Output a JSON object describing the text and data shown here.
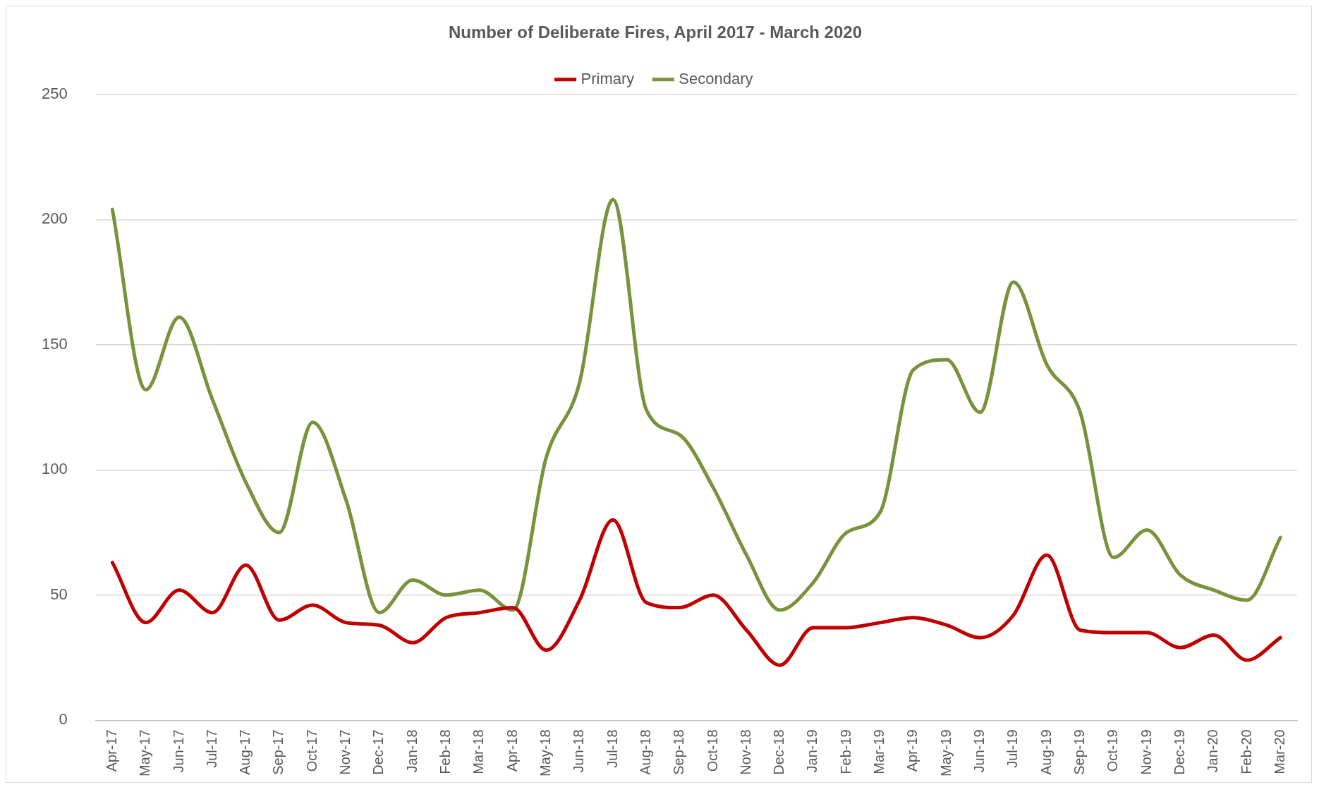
{
  "chart_data": {
    "type": "line",
    "title": "Number of Deliberate Fires, April 2017 - March 2020",
    "categories": [
      "Apr-17",
      "May-17",
      "Jun-17",
      "Jul-17",
      "Aug-17",
      "Sep-17",
      "Oct-17",
      "Nov-17",
      "Dec-17",
      "Jan-18",
      "Feb-18",
      "Mar-18",
      "Apr-18",
      "May-18",
      "Jun-18",
      "Jul-18",
      "Aug-18",
      "Sep-18",
      "Oct-18",
      "Nov-18",
      "Dec-18",
      "Jan-19",
      "Feb-19",
      "Mar-19",
      "Apr-19",
      "May-19",
      "Jun-19",
      "Jul-19",
      "Aug-19",
      "Sep-19",
      "Oct-19",
      "Nov-19",
      "Dec-19",
      "Jan-20",
      "Feb-20",
      "Mar-20"
    ],
    "series": [
      {
        "name": "Primary",
        "color": "#c00000",
        "values": [
          63,
          39,
          52,
          43,
          62,
          40,
          46,
          39,
          38,
          31,
          41,
          43,
          45,
          28,
          48,
          80,
          47,
          45,
          50,
          36,
          22,
          37,
          37,
          39,
          41,
          38,
          33,
          42,
          66,
          36,
          35,
          35,
          29,
          34,
          24,
          33
        ]
      },
      {
        "name": "Secondary",
        "color": "#77933c",
        "values": [
          204,
          132,
          161,
          128,
          95,
          75,
          119,
          88,
          43,
          56,
          50,
          52,
          44,
          105,
          135,
          208,
          124,
          114,
          93,
          66,
          44,
          55,
          75,
          83,
          140,
          144,
          123,
          175,
          142,
          123,
          65,
          76,
          58,
          52,
          48,
          73
        ]
      }
    ],
    "ylim": [
      0,
      250
    ],
    "yticks": [
      0,
      50,
      100,
      150,
      200,
      250
    ],
    "grid": "y",
    "legend": "top",
    "marker": "none",
    "line_style": "solid"
  }
}
